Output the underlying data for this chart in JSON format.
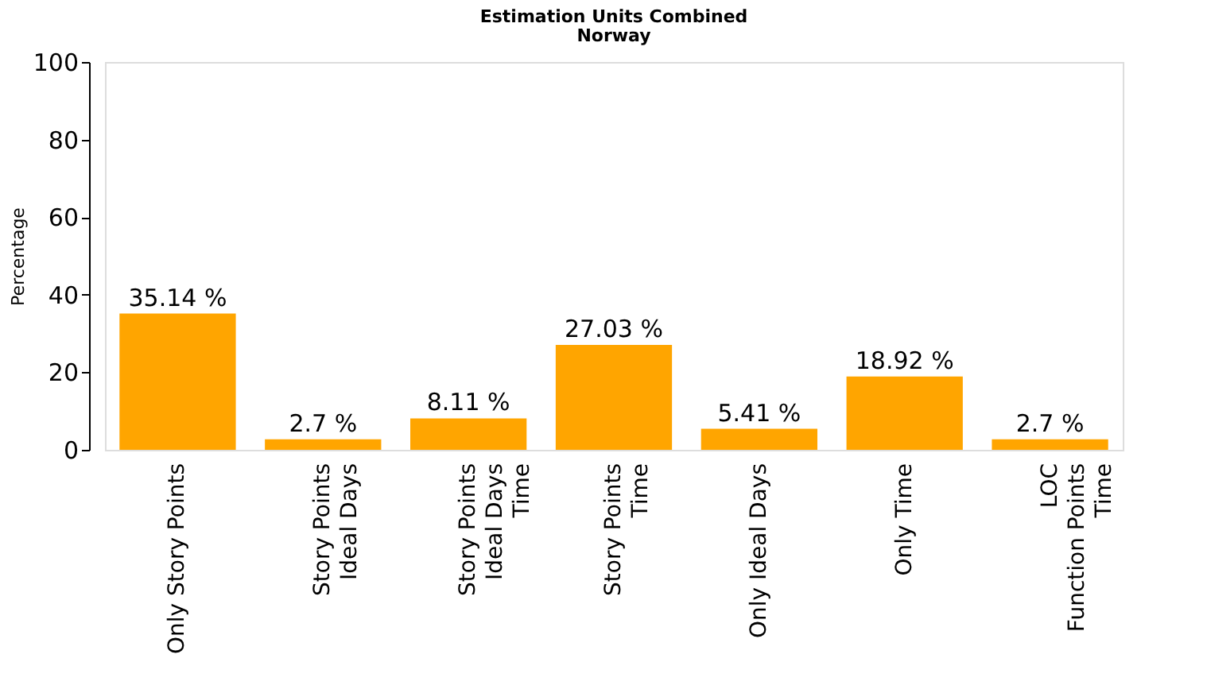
{
  "chart_data": {
    "type": "bar",
    "title": "Estimation Units Combined",
    "subtitle": "Norway",
    "ylabel": "Percentage",
    "categories": [
      "Only Story Points",
      "Story Points\nIdeal Days",
      "Story Points\nIdeal Days\nTime",
      "Story Points\nTime",
      "Only Ideal Days",
      "Only Time",
      "LOC\nFunction Points\nTime"
    ],
    "values": [
      35.14,
      2.7,
      8.11,
      27.03,
      5.41,
      18.92,
      2.7
    ],
    "value_labels": [
      "35.14 %",
      "2.7 %",
      "8.11 %",
      "27.03 %",
      "5.41 %",
      "18.92 %",
      "2.7 %"
    ],
    "color": "#ffa500",
    "ylim": [
      0,
      100
    ],
    "yticks": [
      0,
      20,
      40,
      60,
      80,
      100
    ],
    "grid": false
  }
}
